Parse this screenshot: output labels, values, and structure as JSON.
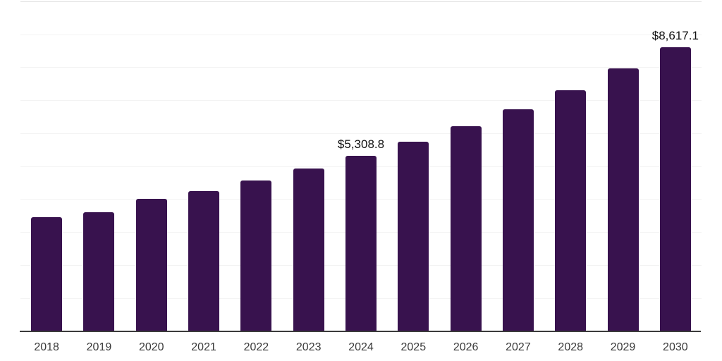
{
  "chart_data": {
    "type": "bar",
    "title": "",
    "xlabel": "",
    "ylabel": "",
    "categories": [
      "2018",
      "2019",
      "2020",
      "2021",
      "2022",
      "2023",
      "2024",
      "2025",
      "2026",
      "2027",
      "2028",
      "2029",
      "2030"
    ],
    "values": [
      3450,
      3610,
      4000,
      4250,
      4560,
      4930,
      5308.8,
      5750,
      6220,
      6730,
      7300,
      7970,
      8617.1
    ],
    "data_labels": [
      "",
      "",
      "",
      "",
      "",
      "",
      "$5,308.8",
      "",
      "",
      "",
      "",
      "",
      "$8,617.1"
    ],
    "ylim": [
      0,
      10000
    ],
    "gridline_interval": 1000,
    "grid": true,
    "legend": false,
    "y_axis_labels_visible": false
  },
  "colors": {
    "bar": "#38124E",
    "axis_line": "#3B3B3B",
    "gridline": "#F3F3F3",
    "top_gridline": "#E0E0E0",
    "data_label_text": "#111111",
    "tick_text": "#3A3A3A",
    "background": "#FFFFFF"
  }
}
